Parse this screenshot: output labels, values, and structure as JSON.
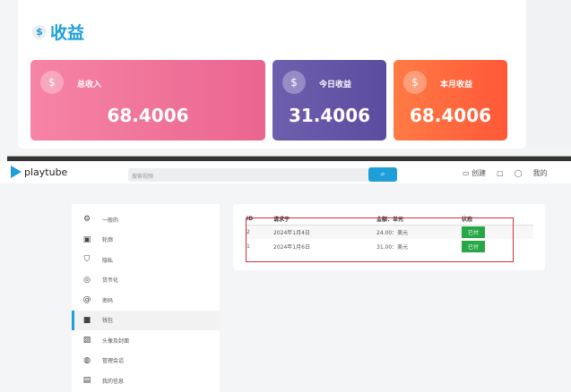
{
  "earnings": {
    "title": "收益",
    "title_icon": "coin-icon",
    "cards": [
      {
        "label": "总收入",
        "value": "68.4006",
        "icon": "money-copy-icon",
        "color": "#ef7099"
      },
      {
        "label": "今日收益",
        "value": "31.4006",
        "icon": "money-copy-icon",
        "color": "#6656a6"
      },
      {
        "label": "本月收益",
        "value": "68.4006",
        "icon": "money-copy-icon",
        "color": "#ff6a3f"
      }
    ]
  },
  "header": {
    "logo": "playtube",
    "search_placeholder": "搜索视频",
    "upload": "创建",
    "more": "我的"
  },
  "sidebar": {
    "items": [
      {
        "label": "一般的",
        "icon": "gear-icon"
      },
      {
        "label": "轮廓",
        "icon": "profile-icon"
      },
      {
        "label": "隐私",
        "icon": "shield-icon"
      },
      {
        "label": "货币化",
        "icon": "coin-icon"
      },
      {
        "label": "密码",
        "icon": "lock-icon"
      },
      {
        "label": "钱包",
        "icon": "wallet-icon",
        "active": true
      },
      {
        "label": "头像及封面",
        "icon": "image-icon"
      },
      {
        "label": "管理会话",
        "icon": "fingerprint-icon"
      },
      {
        "label": "我的信息",
        "icon": "document-icon"
      }
    ]
  },
  "table": {
    "headers": [
      "ID",
      "请求于",
      "金额：单元",
      "状态"
    ],
    "rows": [
      [
        "2",
        "2024年1月4日",
        "24.00：美元",
        "已付"
      ],
      [
        "1",
        "2024年1月6日",
        "31.00：美元",
        "已付"
      ]
    ]
  }
}
